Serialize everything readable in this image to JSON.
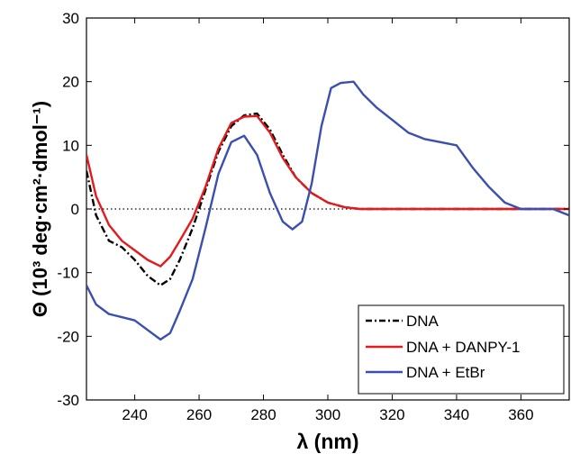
{
  "chart_data": {
    "type": "line",
    "xlabel": "λ (nm)",
    "ylabel": "Θ (10³ deg·cm²·dmol⁻¹)",
    "xlim": [
      225,
      375
    ],
    "ylim": [
      -30,
      30
    ],
    "x_ticks": [
      240,
      260,
      280,
      300,
      320,
      340,
      360
    ],
    "y_ticks": [
      -30,
      -20,
      -10,
      0,
      10,
      20,
      30
    ],
    "x_tick_labels": [
      "240",
      "260",
      "280",
      "300",
      "320",
      "340",
      "360"
    ],
    "y_tick_labels": [
      "-30",
      "-20",
      "-10",
      "0",
      "10",
      "20",
      "30"
    ],
    "zero_reference_line": true,
    "grid": false,
    "legend_position": "bottom-right",
    "series": [
      {
        "name": "DNA",
        "color": "#000000",
        "style": "dash-dot",
        "x": [
          225,
          228,
          232,
          236,
          240,
          244,
          248,
          251,
          254,
          258,
          262,
          266,
          270,
          274,
          278,
          282,
          286,
          290,
          295,
          300,
          305,
          310,
          320,
          330,
          340,
          350,
          360,
          375
        ],
        "y": [
          6,
          -1,
          -5,
          -6,
          -8,
          -10.5,
          -12,
          -11,
          -8,
          -3,
          3,
          9,
          13,
          14.7,
          15,
          12.5,
          8.5,
          5,
          2.5,
          1,
          0.3,
          0,
          0,
          0,
          0,
          0,
          0,
          0
        ]
      },
      {
        "name": "DNA + DANPY-1",
        "color": "#e41a1c",
        "style": "solid",
        "x": [
          225,
          228,
          232,
          236,
          240,
          244,
          248,
          251,
          254,
          258,
          262,
          266,
          270,
          274,
          278,
          282,
          286,
          290,
          295,
          300,
          305,
          310,
          320,
          330,
          340,
          350,
          360,
          375
        ],
        "y": [
          8.5,
          2,
          -2.5,
          -5,
          -6.5,
          -8,
          -9,
          -7.5,
          -5,
          -1.5,
          3.5,
          9.5,
          13.5,
          14.5,
          14.6,
          12,
          8,
          5,
          2.5,
          1,
          0.3,
          0,
          0,
          0,
          0,
          0,
          0,
          0
        ]
      },
      {
        "name": "DNA + EtBr",
        "color": "#3a4fb0",
        "style": "solid",
        "x": [
          225,
          228,
          232,
          236,
          240,
          244,
          248,
          251,
          254,
          258,
          262,
          266,
          270,
          274,
          278,
          282,
          286,
          289,
          292,
          295,
          298,
          301,
          304,
          308,
          311,
          315,
          320,
          325,
          330,
          335,
          340,
          345,
          350,
          355,
          360,
          365,
          370,
          375
        ],
        "y": [
          -12,
          -15,
          -16.5,
          -17,
          -17.5,
          -19,
          -20.5,
          -19.5,
          -16,
          -11,
          -3,
          5.5,
          10.5,
          11.5,
          8.5,
          2.5,
          -2,
          -3.2,
          -2,
          4,
          13,
          19,
          19.8,
          20,
          18,
          16,
          14,
          12,
          11,
          10.5,
          10,
          6.5,
          3.5,
          1,
          0,
          0,
          0,
          -1
        ]
      }
    ]
  }
}
